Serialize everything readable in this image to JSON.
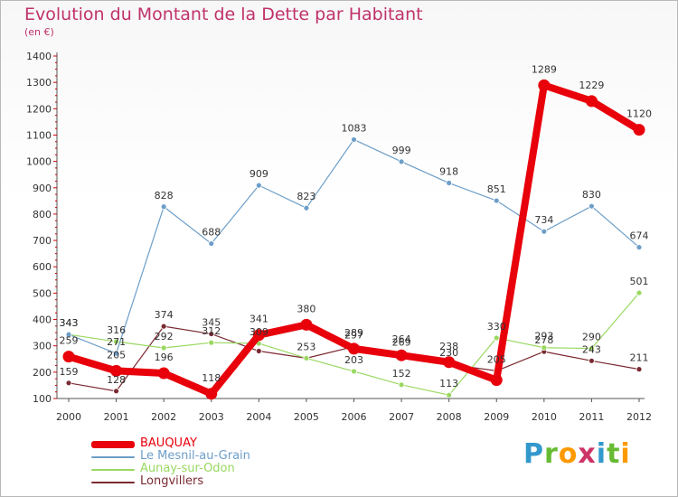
{
  "header": {
    "title": "Evolution du Montant de la Dette par Habitant",
    "subtitle": "(en €)"
  },
  "brand": {
    "letters": [
      "P",
      "r",
      "o",
      "x",
      "i",
      "t",
      "i"
    ],
    "colors": [
      "#3399cc",
      "#66bb33",
      "#ff9900",
      "#cc3366",
      "#3399cc",
      "#66bb33",
      "#ff9900"
    ]
  },
  "chart_data": {
    "type": "line",
    "title": "Evolution du Montant de la Dette par Habitant",
    "subtitle": "(en €)",
    "xlabel": "",
    "ylabel": "",
    "x": [
      "2000",
      "2001",
      "2002",
      "2003",
      "2004",
      "2005",
      "2006",
      "2007",
      "2008",
      "2009",
      "2010",
      "2011",
      "2012"
    ],
    "ylim": [
      100,
      1400
    ],
    "yticks": [
      100,
      200,
      300,
      400,
      500,
      600,
      700,
      800,
      900,
      1000,
      1100,
      1200,
      1300,
      1400
    ],
    "grid": false,
    "legend_position": "bottom-left",
    "series": [
      {
        "name": "BAUQUAY",
        "color": "#e8000b",
        "values": [
          259,
          205,
          196,
          118,
          341,
          380,
          289,
          264,
          238,
          170,
          1289,
          1229,
          1120
        ],
        "labels": [
          "259",
          "205",
          "196",
          "118",
          "341",
          "380",
          "289",
          "264",
          "238",
          "",
          "1289",
          "1229",
          "1120"
        ]
      },
      {
        "name": "Le Mesnil-au-Grain",
        "color": "#6d9ec8",
        "values": [
          343,
          271,
          828,
          688,
          909,
          823,
          1083,
          999,
          918,
          851,
          734,
          830,
          674
        ],
        "labels": [
          "343",
          "271",
          "828",
          "688",
          "909",
          "823",
          "1083",
          "999",
          "918",
          "851",
          "734",
          "830",
          "674"
        ]
      },
      {
        "name": "Aunay-sur-Odon",
        "color": "#99d860",
        "values": [
          343,
          316,
          292,
          312,
          309,
          253,
          203,
          152,
          113,
          330,
          293,
          290,
          501
        ],
        "labels": [
          "343",
          "316",
          "292",
          "312",
          "309",
          "253",
          "203",
          "152",
          "113",
          "330",
          "293",
          "290",
          "501"
        ]
      },
      {
        "name": "Longvillers",
        "color": "#7a2a32",
        "values": [
          159,
          128,
          374,
          345,
          280,
          253,
          297,
          269,
          230,
          205,
          278,
          243,
          211
        ],
        "labels": [
          "159",
          "128",
          "374",
          "345",
          "",
          "",
          "297",
          "269",
          "230",
          "205",
          "278",
          "243",
          "211"
        ]
      }
    ]
  }
}
